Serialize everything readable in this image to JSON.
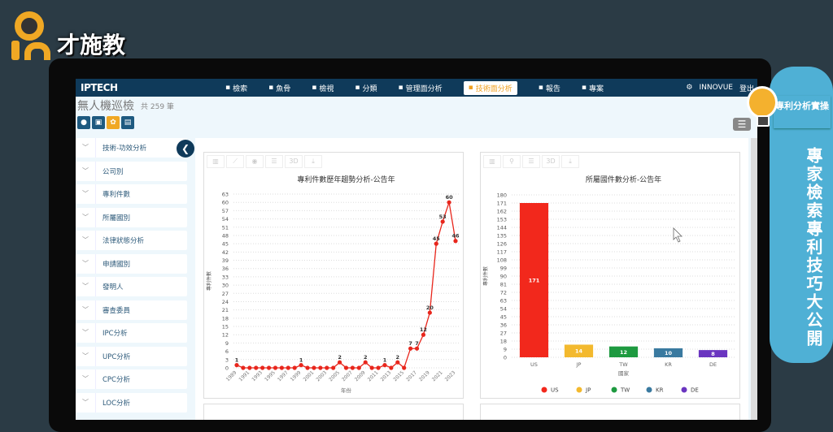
{
  "watermark": {
    "text": "才施教"
  },
  "nav": {
    "brand": "IPTECH",
    "items": [
      {
        "label": "檢索",
        "icon": "search-icon"
      },
      {
        "label": "魚骨",
        "icon": "fishbone-icon"
      },
      {
        "label": "檢視",
        "icon": "view-icon"
      },
      {
        "label": "分類",
        "icon": "classify-icon"
      },
      {
        "label": "管理面分析",
        "icon": "management-icon"
      },
      {
        "label": "技術面分析",
        "icon": "tech-icon",
        "active": true
      },
      {
        "label": "報告",
        "icon": "report-icon"
      },
      {
        "label": "專案",
        "icon": "project-icon"
      }
    ],
    "user": "INNOVUE",
    "logout": "登出"
  },
  "page": {
    "title": "無人機巡檢",
    "count": "共 259 筆"
  },
  "sidebar": {
    "items": [
      "技術-功效分析",
      "公司別",
      "專利件數",
      "所屬國別",
      "法律狀態分析",
      "申請國別",
      "發明人",
      "審查委員",
      "IPC分析",
      "UPC分析",
      "CPC分析",
      "LOC分析"
    ]
  },
  "badge": {
    "top": "專利分析實操",
    "text": "專家檢索專利技巧大公開"
  },
  "chart_data": [
    {
      "type": "line",
      "title": "專利件數歷年趨勢分析-公告年",
      "xlabel": "年份",
      "ylabel": "專利件數",
      "x": [
        1989,
        1990,
        1991,
        1992,
        1993,
        1994,
        1995,
        1996,
        1997,
        1998,
        1999,
        2000,
        2001,
        2002,
        2003,
        2004,
        2005,
        2006,
        2007,
        2008,
        2009,
        2010,
        2011,
        2012,
        2013,
        2014,
        2015,
        2016,
        2017,
        2018,
        2019,
        2020,
        2021,
        2022,
        2023
      ],
      "values": [
        1,
        0,
        0,
        0,
        0,
        0,
        0,
        0,
        0,
        0,
        1,
        0,
        0,
        0,
        0,
        0,
        2,
        0,
        0,
        0,
        2,
        0,
        0,
        1,
        0,
        2,
        0,
        7,
        7,
        12,
        20,
        45,
        53,
        60,
        46
      ],
      "ylim": [
        0,
        63
      ],
      "ytick_step": 3,
      "color": "#e8261c",
      "grid": true
    },
    {
      "type": "bar",
      "title": "所屬國件數分析-公告年",
      "xlabel": "國家",
      "ylabel": "專利件數",
      "categories": [
        "US",
        "JP",
        "TW",
        "KR",
        "DE"
      ],
      "values": [
        171,
        14,
        12,
        10,
        8
      ],
      "colors": [
        "#f2281c",
        "#f3b92e",
        "#1e9a40",
        "#3a7aa0",
        "#6a35c0"
      ],
      "ylim": [
        0,
        180
      ],
      "ytick_step": 9,
      "legend": "bottom",
      "grid": true
    }
  ]
}
